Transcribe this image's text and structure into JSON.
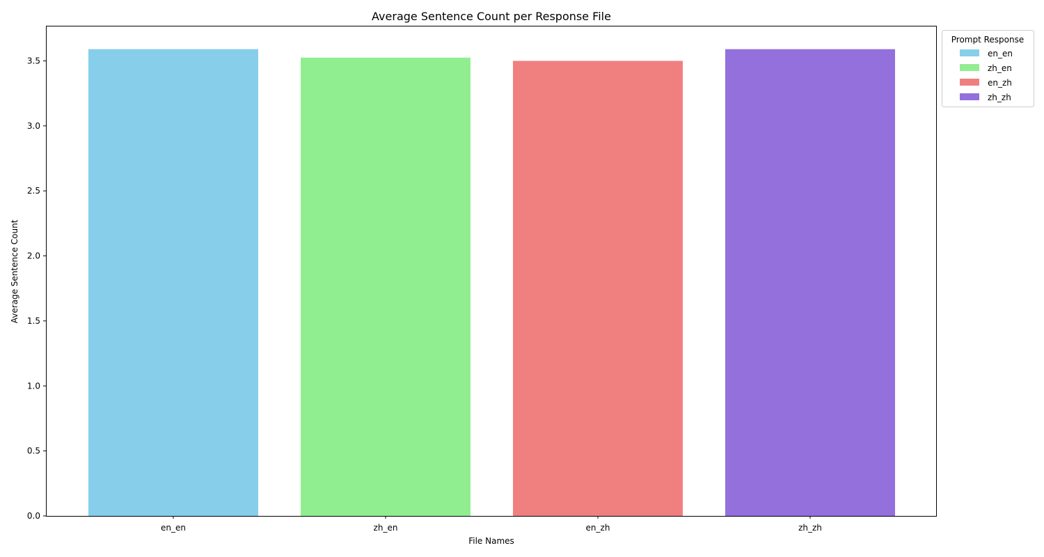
{
  "chart_data": {
    "type": "bar",
    "title": "Average Sentence Count per Response File",
    "xlabel": "File Names",
    "ylabel": "Average Sentence Count",
    "categories": [
      "en_en",
      "zh_en",
      "en_zh",
      "zh_zh"
    ],
    "values": [
      3.59,
      3.525,
      3.5,
      3.59
    ],
    "colors": [
      "#87ceeb",
      "#90ee90",
      "#f08080",
      "#9370db"
    ],
    "ylim": [
      0,
      3.77
    ],
    "yticks": [
      "0.0",
      "0.5",
      "1.0",
      "1.5",
      "2.0",
      "2.5",
      "3.0",
      "3.5"
    ],
    "grid": false,
    "legend": {
      "title": "Prompt Response",
      "placement": "outside-top-right",
      "entries": [
        "en_en",
        "zh_en",
        "en_zh",
        "zh_zh"
      ]
    }
  }
}
